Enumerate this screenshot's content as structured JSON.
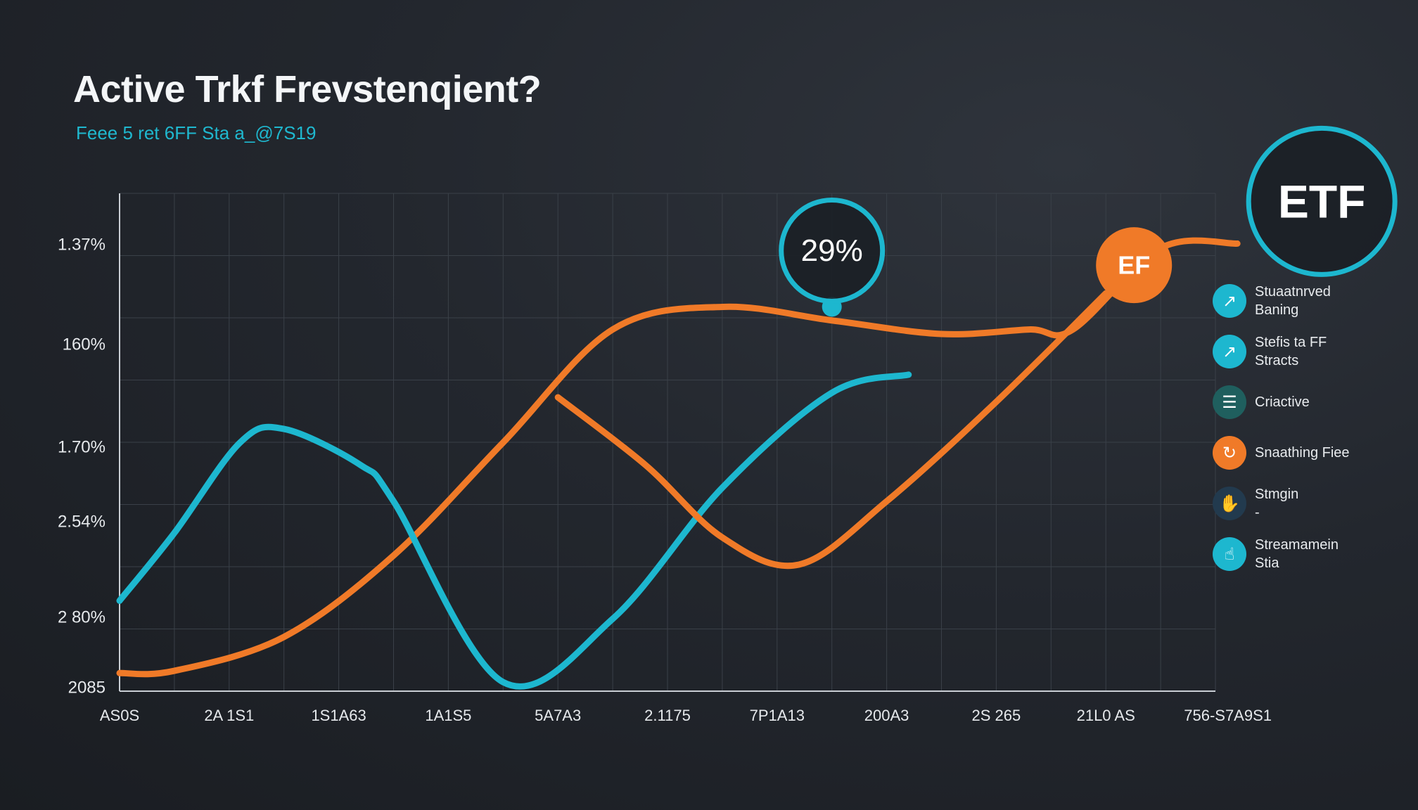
{
  "chart_data": {
    "type": "line",
    "title": "Active Trkf Frevstenqient?",
    "subtitle": "Feee 5 ret 6FF Sta a_@7S19",
    "x_tick_labels": [
      "AS0S",
      "2A 1S1",
      "1S1A63",
      "1A1S5",
      "5A7A3",
      "2.1175",
      "7P1A13",
      "200A3",
      "2S 265",
      "21L0 AS",
      "756-S7A9S1"
    ],
    "y_tick_labels": [
      "1.37%",
      "160%",
      "1.70%",
      "2.54%",
      "2 80%",
      "2085"
    ],
    "ylim": [
      0,
      100
    ],
    "grid": true,
    "series": [
      {
        "color": "#f07a28",
        "x": [
          0,
          0.5,
          1.5,
          2.5,
          3.5,
          4.5,
          5.5,
          6.5,
          7.5,
          8.3,
          8.7,
          9.5,
          10.2
        ],
        "values": [
          4,
          4.5,
          12,
          30,
          55,
          80,
          85,
          82,
          79,
          80,
          80,
          98,
          99
        ]
      },
      {
        "color": "#1db7cf",
        "x": [
          0,
          0.5,
          1.1,
          1.5,
          2.2,
          2.5,
          3.5,
          4.5,
          5.5,
          6.5,
          7.2
        ],
        "values": [
          20,
          35,
          55,
          58,
          50,
          42,
          2,
          16,
          45,
          66,
          70
        ]
      },
      {
        "color": "#f07a28",
        "x": [
          4.0,
          4.8,
          5.5,
          6.2,
          7.0,
          8.0,
          9.0
        ],
        "values": [
          65,
          50,
          34,
          28,
          42,
          64,
          88
        ]
      }
    ],
    "annotations": [
      {
        "text": "29%",
        "style": "ring",
        "color": "#1db7cf",
        "x": 6.5,
        "y": 85
      },
      {
        "text": "EF",
        "style": "filled",
        "color": "#f07a28",
        "x": 9.0,
        "y": 88
      },
      {
        "text": "ETF",
        "style": "ring",
        "color": "#1db7cf",
        "x": 10.2,
        "y": 99
      }
    ],
    "legend": {
      "position": "right",
      "items": [
        {
          "label": "Stuaatnrved\nBaning",
          "color": "#1db7cf",
          "icon": "chart-icon"
        },
        {
          "label": "Stefis ta FF\nStracts",
          "color": "#1db7cf",
          "icon": "chart-icon"
        },
        {
          "label": "Criactive",
          "color": "#1f5f5e",
          "icon": "document-icon"
        },
        {
          "label": "Snaathing Fiee",
          "color": "#f07a28",
          "icon": "swirl-icon"
        },
        {
          "label": "Stmgin\n-",
          "color": "#223a4e",
          "icon": "hand-icon"
        },
        {
          "label": "Streamamein\nStia",
          "color": "#1db7cf",
          "icon": "tap-icon"
        }
      ]
    }
  }
}
